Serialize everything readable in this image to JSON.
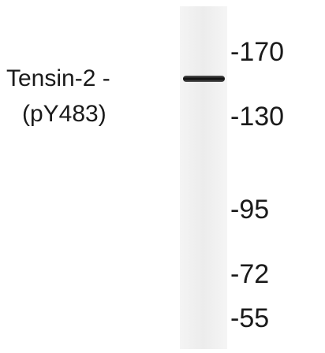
{
  "label": {
    "lines": [
      "Tensin-2 -",
      "(pY483)"
    ]
  },
  "markers": [
    "-170",
    "-130",
    "-95",
    "-72",
    "-55"
  ]
}
